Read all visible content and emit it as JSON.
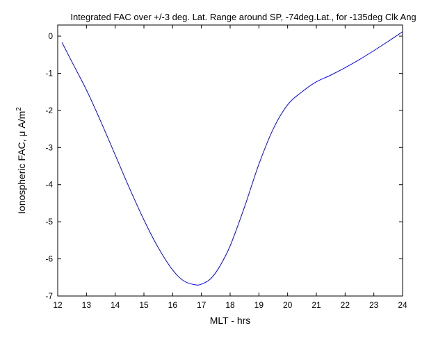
{
  "chart_data": {
    "type": "line",
    "title": "Integrated FAC over +/-3 deg. Lat. Range around SP, -74deg.Lat., for -135deg Clk Ang",
    "xlabel": "MLT - hrs",
    "ylabel": {
      "main": "Ionospheric FAC, ",
      "mu": "μ",
      "unit": " A/m",
      "exponent": "2"
    },
    "xlim": [
      12,
      24
    ],
    "ylim": [
      -7,
      0.3
    ],
    "xticks": [
      12,
      13,
      14,
      15,
      16,
      17,
      18,
      19,
      20,
      21,
      22,
      23,
      24
    ],
    "xtick_labels": [
      "12",
      "13",
      "14",
      "15",
      "16",
      "17",
      "18",
      "19",
      "20",
      "21",
      "22",
      "23",
      "24"
    ],
    "yticks": [
      0,
      -1,
      -2,
      -3,
      -4,
      -5,
      -6,
      -7
    ],
    "ytick_labels": [
      "0",
      "-1",
      "-2",
      "-3",
      "-4",
      "-5",
      "-6",
      "-7"
    ],
    "grid": false,
    "series": [
      {
        "color": "#0000ff",
        "x": [
          12.15,
          12.5,
          13.0,
          13.5,
          14.0,
          14.5,
          15.0,
          15.5,
          16.0,
          16.4,
          16.8,
          17.0,
          17.3,
          17.6,
          18.0,
          18.5,
          19.0,
          19.5,
          20.0,
          20.5,
          21.0,
          21.5,
          22.0,
          22.5,
          23.0,
          23.5,
          24.0
        ],
        "y": [
          -0.17,
          -0.7,
          -1.45,
          -2.3,
          -3.2,
          -4.1,
          -4.95,
          -5.7,
          -6.3,
          -6.6,
          -6.7,
          -6.68,
          -6.55,
          -6.25,
          -5.65,
          -4.6,
          -3.45,
          -2.5,
          -1.85,
          -1.5,
          -1.23,
          -1.05,
          -0.85,
          -0.63,
          -0.39,
          -0.14,
          0.12
        ]
      }
    ]
  }
}
